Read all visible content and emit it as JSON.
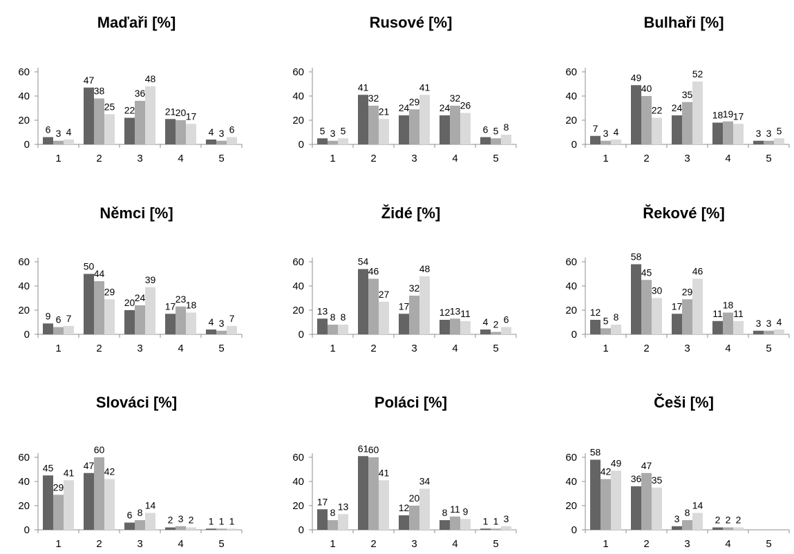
{
  "series_colors": [
    "#646464",
    "#aaaaaa",
    "#dadada"
  ],
  "chart_data": [
    {
      "type": "bar",
      "title": "Maďaři [%]",
      "categories": [
        "1",
        "2",
        "3",
        "4",
        "5"
      ],
      "ylim": [
        0,
        60
      ],
      "yticks": [
        "0",
        "20",
        "40",
        "60"
      ],
      "series": [
        {
          "values": [
            6,
            47,
            22,
            21,
            4
          ]
        },
        {
          "values": [
            3,
            38,
            36,
            20,
            3
          ]
        },
        {
          "values": [
            4,
            25,
            48,
            17,
            6
          ]
        }
      ]
    },
    {
      "type": "bar",
      "title": "Rusové [%]",
      "categories": [
        "1",
        "2",
        "3",
        "4",
        "5"
      ],
      "ylim": [
        0,
        60
      ],
      "yticks": [
        "0",
        "20",
        "40",
        "60"
      ],
      "series": [
        {
          "values": [
            5,
            41,
            24,
            24,
            6
          ]
        },
        {
          "values": [
            3,
            32,
            29,
            32,
            5
          ]
        },
        {
          "values": [
            5,
            21,
            41,
            26,
            8
          ]
        }
      ]
    },
    {
      "type": "bar",
      "title": "Bulhaři [%]",
      "categories": [
        "1",
        "2",
        "3",
        "4",
        "5"
      ],
      "ylim": [
        0,
        60
      ],
      "yticks": [
        "0",
        "20",
        "40",
        "60"
      ],
      "series": [
        {
          "values": [
            7,
            49,
            24,
            18,
            3
          ]
        },
        {
          "values": [
            3,
            40,
            35,
            19,
            3
          ]
        },
        {
          "values": [
            4,
            22,
            52,
            17,
            5
          ]
        }
      ]
    },
    {
      "type": "bar",
      "title": "Němci [%]",
      "categories": [
        "1",
        "2",
        "3",
        "4",
        "5"
      ],
      "ylim": [
        0,
        60
      ],
      "yticks": [
        "0",
        "20",
        "40",
        "60"
      ],
      "series": [
        {
          "values": [
            9,
            50,
            20,
            17,
            4
          ]
        },
        {
          "values": [
            6,
            44,
            24,
            23,
            3
          ]
        },
        {
          "values": [
            7,
            29,
            39,
            18,
            7
          ]
        }
      ]
    },
    {
      "type": "bar",
      "title": "Židé [%]",
      "categories": [
        "1",
        "2",
        "3",
        "4",
        "5"
      ],
      "ylim": [
        0,
        60
      ],
      "yticks": [
        "0",
        "20",
        "40",
        "60"
      ],
      "series": [
        {
          "values": [
            13,
            54,
            17,
            12,
            4
          ]
        },
        {
          "values": [
            8,
            46,
            32,
            13,
            2
          ]
        },
        {
          "values": [
            8,
            27,
            48,
            11,
            6
          ]
        }
      ]
    },
    {
      "type": "bar",
      "title": "Řekové [%]",
      "categories": [
        "1",
        "2",
        "3",
        "4",
        "5"
      ],
      "ylim": [
        0,
        60
      ],
      "yticks": [
        "0",
        "20",
        "40",
        "60"
      ],
      "series": [
        {
          "values": [
            12,
            58,
            17,
            11,
            3
          ]
        },
        {
          "values": [
            5,
            45,
            29,
            18,
            3
          ]
        },
        {
          "values": [
            8,
            30,
            46,
            11,
            4
          ]
        }
      ]
    },
    {
      "type": "bar",
      "title": "Slováci [%]",
      "categories": [
        "1",
        "2",
        "3",
        "4",
        "5"
      ],
      "ylim": [
        0,
        60
      ],
      "yticks": [
        "0",
        "20",
        "40",
        "60"
      ],
      "series": [
        {
          "values": [
            45,
            47,
            6,
            2,
            1
          ]
        },
        {
          "values": [
            29,
            60,
            8,
            3,
            1
          ]
        },
        {
          "values": [
            41,
            42,
            14,
            2,
            1
          ]
        }
      ]
    },
    {
      "type": "bar",
      "title": "Poláci [%]",
      "categories": [
        "1",
        "2",
        "3",
        "4",
        "5"
      ],
      "ylim": [
        0,
        60
      ],
      "yticks": [
        "0",
        "20",
        "40",
        "60"
      ],
      "series": [
        {
          "values": [
            17,
            61,
            12,
            8,
            1
          ]
        },
        {
          "values": [
            8,
            60,
            20,
            11,
            1
          ]
        },
        {
          "values": [
            13,
            41,
            34,
            9,
            3
          ]
        }
      ]
    },
    {
      "type": "bar",
      "title": "Češi [%]",
      "categories": [
        "1",
        "2",
        "3",
        "4",
        "5"
      ],
      "ylim": [
        0,
        60
      ],
      "yticks": [
        "0",
        "20",
        "40",
        "60"
      ],
      "series": [
        {
          "values": [
            58,
            36,
            3,
            2,
            null
          ]
        },
        {
          "values": [
            42,
            47,
            8,
            2,
            null
          ]
        },
        {
          "values": [
            49,
            35,
            14,
            2,
            null
          ]
        }
      ]
    }
  ]
}
